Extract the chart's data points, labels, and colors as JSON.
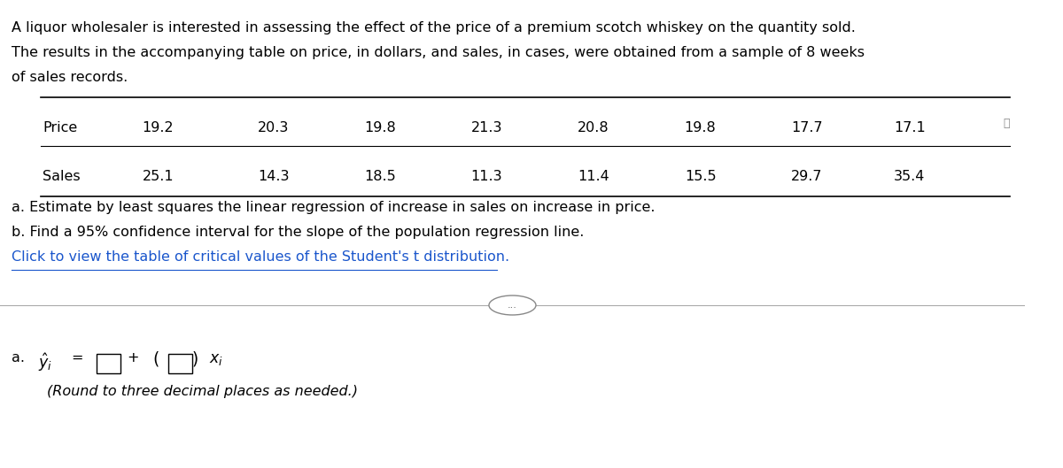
{
  "para_line1": "A liquor wholesaler is interested in assessing the effect of the price of a premium scotch whiskey on the quantity sold.",
  "para_line2": "The results in the accompanying table on price, in dollars, and sales, in cases, were obtained from a sample of 8 weeks",
  "para_line3": "of sales records.",
  "price_values": [
    "19.2",
    "20.3",
    "19.8",
    "21.3",
    "20.8",
    "19.8",
    "17.7",
    "17.1"
  ],
  "sales_values": [
    "25.1",
    "14.3",
    "18.5",
    "11.3",
    "11.4",
    "15.5",
    "29.7",
    "35.4"
  ],
  "question_a": "a. Estimate by least squares the linear regression of increase in sales on increase in price.",
  "question_b": "b. Find a 95% confidence interval for the slope of the population regression line.",
  "link_text": "Click to view the table of critical values of the Student's t distribution.",
  "answer_label": "a.",
  "answer_note": "(Round to three decimal places as needed.)",
  "bg_color": "#ffffff",
  "text_color": "#000000",
  "link_color": "#1a56cc",
  "font_size_main": 11.5
}
